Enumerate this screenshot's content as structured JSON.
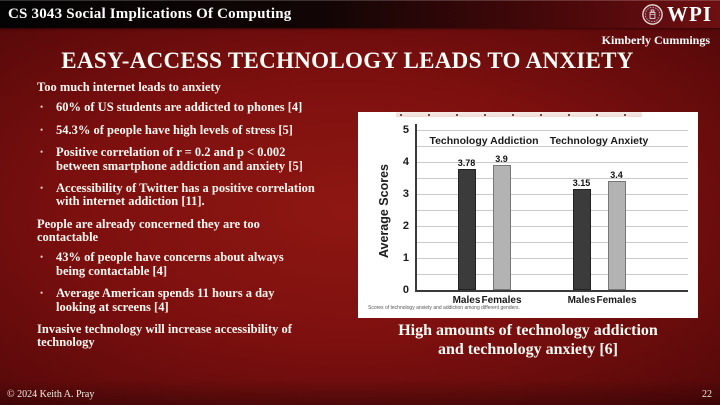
{
  "header": {
    "course_title": "CS 3043 Social Implications Of Computing",
    "logo_text": "WPI"
  },
  "slide": {
    "author": "Kimberly Cummings",
    "title": "EASY-ACCESS TECHNOLOGY LEADS TO ANXIETY",
    "sections": [
      {
        "heading": "Too much internet leads to anxiety",
        "bullets": [
          "60% of US students are addicted to phones [4]",
          "54.3% of people have high levels of stress [5]",
          "Positive correlation of r = 0.2 and p < 0.002\nbetween smartphone addiction and anxiety [5]",
          "Accessibility of Twitter has a positive correlation\nwith internet addiction [11]."
        ]
      },
      {
        "heading": "People are already concerned they are too\ncontactable",
        "bullets": [
          "43% of people have concerns about always\nbeing contactable [4]",
          "Average American spends 11 hours a day\nlooking at screens [4]"
        ]
      },
      {
        "heading": "Invasive technology will increase accessibility of\ntechnology",
        "bullets": []
      }
    ],
    "figure_caption": "High amounts of technology addiction\nand technology anxiety [6]"
  },
  "chart_data": {
    "type": "bar",
    "title": "",
    "ylabel": "Average Scores",
    "xlabel": "",
    "ylim": [
      0,
      5
    ],
    "ytick_step": 1,
    "gridline_step": 0.5,
    "grid": true,
    "legend_position": "none",
    "groups": [
      {
        "label": "Technology Addiction",
        "categories": [
          "Males",
          "Females"
        ],
        "values": [
          3.78,
          3.9
        ]
      },
      {
        "label": "Technology Anxiety",
        "categories": [
          "Males",
          "Females"
        ],
        "values": [
          3.15,
          3.4
        ]
      }
    ],
    "bar_colors": {
      "Males": "#3b3b3b",
      "Females": "#b3b3b3"
    },
    "caption": "Scores of technology anxiety and addiction among different genders."
  },
  "colors": {
    "slide_background": "#7d100f",
    "header_bar_left": "#040404",
    "header_bar_right": "#6e0f11",
    "text": "#fdf8f2",
    "chart_background": "#ffffff"
  },
  "footer": {
    "copyright": "© 2024 Keith A. Pray",
    "page_number": "22"
  }
}
